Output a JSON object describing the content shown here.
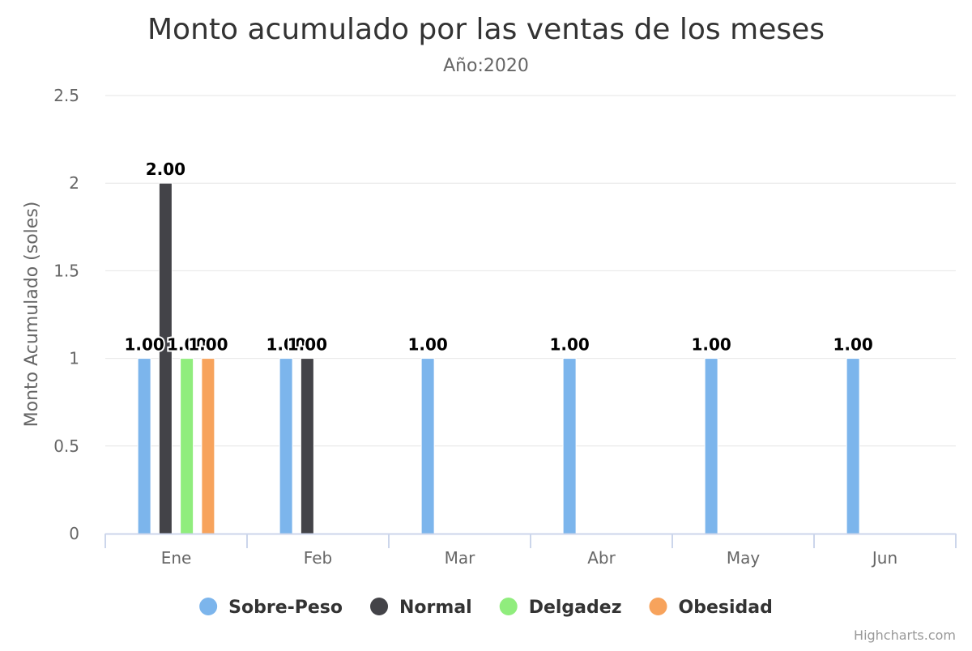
{
  "chart_data": {
    "type": "bar",
    "title": "Monto acumulado por las ventas de los meses",
    "subtitle": "Año:2020",
    "ylabel": "Monto Acumulado (soles)",
    "xlabel": "",
    "categories": [
      "Ene",
      "Feb",
      "Mar",
      "Abr",
      "May",
      "Jun"
    ],
    "ylim": [
      0,
      2.5
    ],
    "yticks": [
      "0",
      "0.5",
      "1",
      "1.5",
      "2",
      "2.5"
    ],
    "grid": true,
    "legend_position": "bottom",
    "series": [
      {
        "name": "Sobre-Peso",
        "color": "#7cb5ec",
        "values": [
          1,
          1,
          1,
          1,
          1,
          1
        ],
        "labels": [
          "1.00",
          "1.00",
          "1.00",
          "1.00",
          "1.00",
          "1.00"
        ]
      },
      {
        "name": "Normal",
        "color": "#434348",
        "values": [
          2,
          1,
          null,
          null,
          null,
          null
        ],
        "labels": [
          "2.00",
          "1.00",
          null,
          null,
          null,
          null
        ]
      },
      {
        "name": "Delgadez",
        "color": "#90ed7d",
        "values": [
          1,
          null,
          null,
          null,
          null,
          null
        ],
        "labels": [
          "1.00",
          null,
          null,
          null,
          null,
          null
        ]
      },
      {
        "name": "Obesidad",
        "color": "#f7a35c",
        "values": [
          1,
          null,
          null,
          null,
          null,
          null
        ],
        "labels": [
          "1.00",
          null,
          null,
          null,
          null,
          null
        ]
      }
    ]
  },
  "credits": "Highcharts.com"
}
